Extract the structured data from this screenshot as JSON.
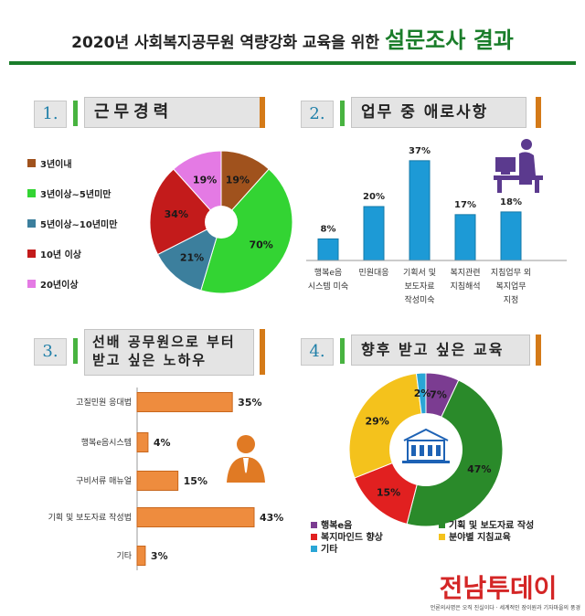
{
  "header": {
    "title_main": "2020년 사회복지공무원 역량강화 교육을 위한",
    "title_emphasis": "설문조사 결과"
  },
  "sections": [
    {
      "number": "1.",
      "title": "근무경력"
    },
    {
      "number": "2.",
      "title": "업무 중 애로사항"
    },
    {
      "number": "3.",
      "title_line1": "선배 공무원으로 부터",
      "title_line2": "받고 싶은 노하우"
    },
    {
      "number": "4.",
      "title": "향후 받고 싶은 교육"
    }
  ],
  "icons": [
    "office-worker-icon",
    "person-icon",
    "building-icon"
  ],
  "footer": {
    "logo": "전남투데이",
    "slogan": "언론의사명은 오직 진실이다 · 세계적인 장이원과 기자마을의 풍경"
  },
  "chart_data": [
    {
      "type": "pie",
      "title": "근무경력",
      "categories": [
        "3년이내",
        "3년이상~5년미만",
        "5년이상~10년미만",
        "10년 이상",
        "20년이상"
      ],
      "values": [
        19,
        70,
        21,
        34,
        19
      ],
      "value_labels": [
        "19%",
        "70%",
        "21%",
        "34%",
        "19%"
      ],
      "colors": [
        "#a0521d",
        "#33d433",
        "#3c7f9d",
        "#c31b1b",
        "#e47ae4"
      ],
      "legend_position": "left",
      "donut": true
    },
    {
      "type": "bar",
      "title": "업무 중 애로사항",
      "categories": [
        [
          "행복e음",
          "시스템 미숙"
        ],
        [
          "민원대응"
        ],
        [
          "기획서 및",
          "보도자료",
          "작성미숙"
        ],
        [
          "복지관련",
          "지침해석"
        ],
        [
          "지침업무 외",
          "복지업무",
          "지정"
        ]
      ],
      "values": [
        8,
        20,
        37,
        17,
        18
      ],
      "value_labels": [
        "8%",
        "20%",
        "37%",
        "17%",
        "18%"
      ],
      "color": "#1d9ad6",
      "ylim": [
        0,
        40
      ],
      "grid": false
    },
    {
      "type": "bar",
      "orientation": "horizontal",
      "title": "선배 공무원으로 부터 받고 싶은 노하우",
      "categories": [
        "고질민원 응대법",
        "행복e음시스템",
        "구비서류 매뉴얼",
        "기획 및 보도자료 작성법",
        "기타"
      ],
      "values": [
        35,
        4,
        15,
        43,
        3
      ],
      "value_labels": [
        "35%",
        "4%",
        "15%",
        "43%",
        "3%"
      ],
      "color": "#ee8c3e",
      "xlim": [
        0,
        43
      ]
    },
    {
      "type": "pie",
      "title": "향후 받고 싶은 교육",
      "categories": [
        "행복e음",
        "기획 및 보도자료 작성",
        "복지마인드 향상",
        "분야별 지침교육",
        "기타"
      ],
      "values": [
        7,
        47,
        15,
        29,
        2
      ],
      "value_labels": [
        "7%",
        "47%",
        "15%",
        "29%",
        "2%"
      ],
      "colors": [
        "#7b3c91",
        "#2a8a2a",
        "#e12020",
        "#f4c21c",
        "#2aa6d6"
      ],
      "legend_position": "bottom",
      "donut": true
    }
  ]
}
